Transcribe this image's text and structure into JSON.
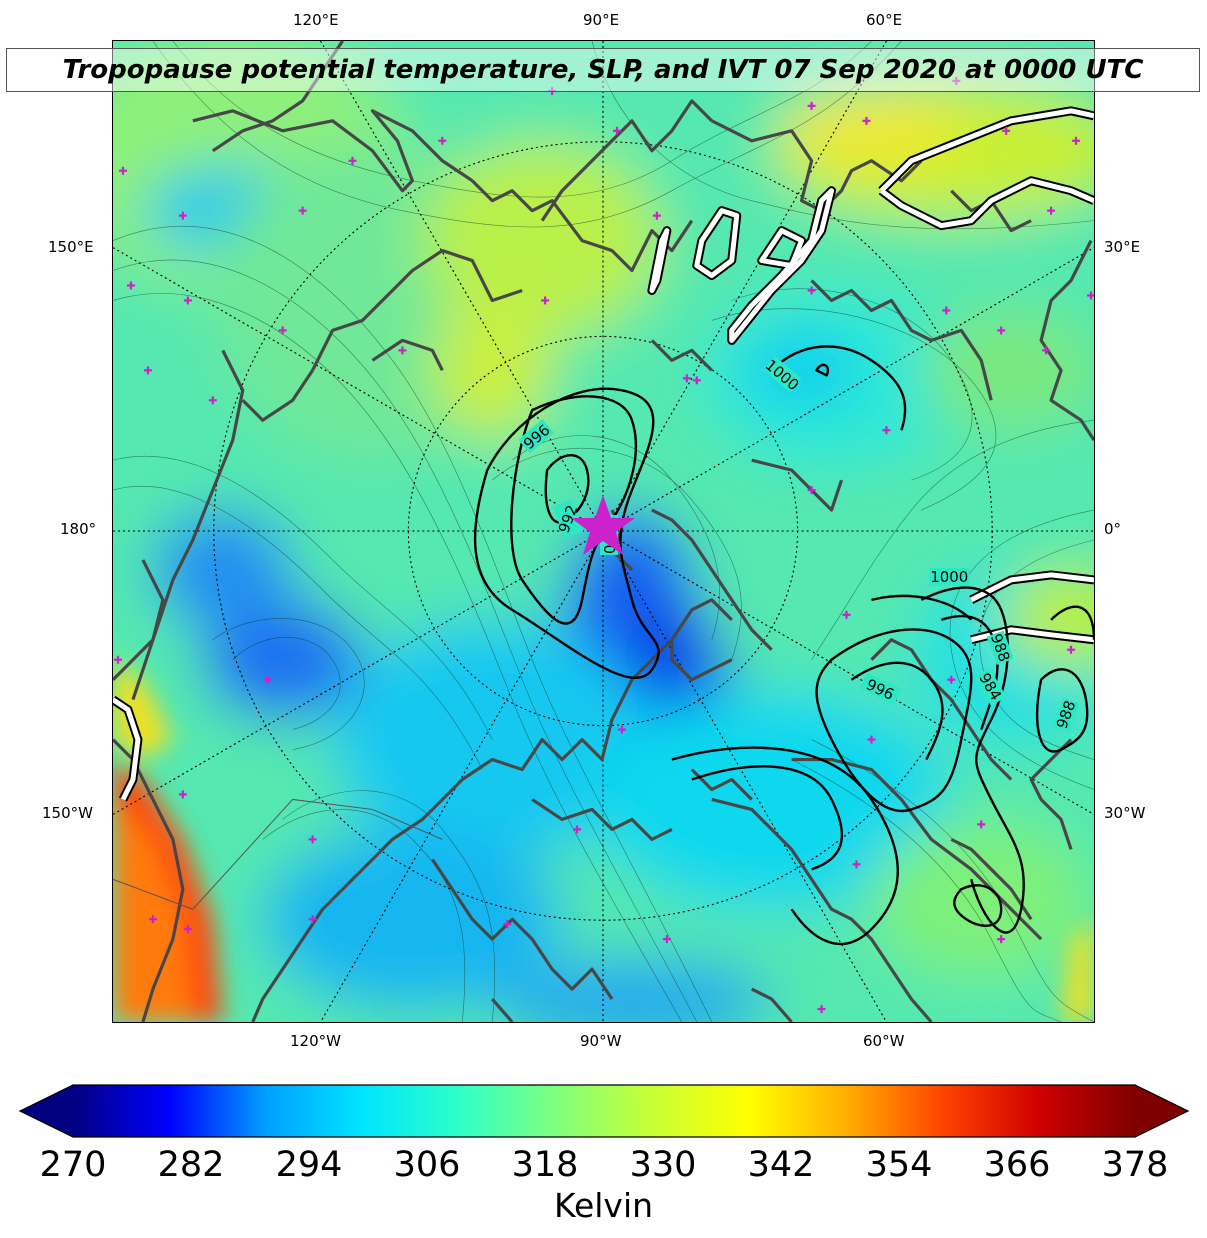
{
  "title": "Tropopause potential temperature, SLP, and IVT 07 Sep 2020 at 0000 UTC",
  "longitude_labels": {
    "top": [
      "120°E",
      "90°E",
      "60°E"
    ],
    "bottom": [
      "120°W",
      "90°W",
      "60°W"
    ],
    "left": [
      "150°E",
      "180°",
      "150°W"
    ],
    "right": [
      "30°E",
      "0°",
      "30°W"
    ]
  },
  "slp_contour_labels": [
    "996",
    "992",
    "1000",
    "1000",
    "1000",
    "996",
    "988",
    "984",
    "988"
  ],
  "colorbar": {
    "ticks": [
      "270",
      "282",
      "294",
      "306",
      "318",
      "330",
      "342",
      "354",
      "366",
      "378"
    ],
    "unit": "Kelvin",
    "min": 270,
    "max": 378,
    "colors": [
      "#000080",
      "#0000ff",
      "#00a0ff",
      "#00e5ff",
      "#2effc8",
      "#7fff7f",
      "#c8ff36",
      "#ffff00",
      "#ffb000",
      "#ff4400",
      "#d00000",
      "#800000"
    ]
  },
  "colors": {
    "coastline": "#474747",
    "ivt_contour": "#ffffff",
    "marker": "#cc22cc"
  }
}
